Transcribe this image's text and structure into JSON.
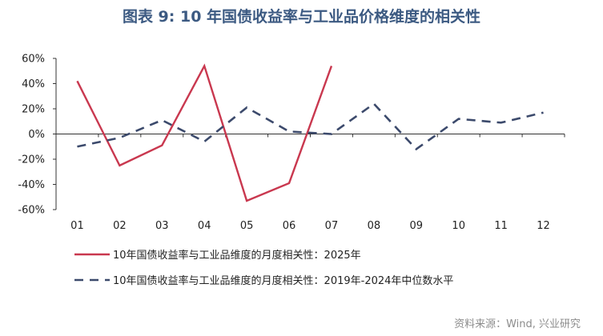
{
  "chart_data": {
    "type": "line",
    "title": "图表 9:  10 年国债收益率与工业品价格维度的相关性",
    "categories": [
      "01",
      "02",
      "03",
      "04",
      "05",
      "06",
      "07",
      "08",
      "09",
      "10",
      "11",
      "12"
    ],
    "ylim": [
      -60,
      60
    ],
    "yticks": [
      -60,
      -40,
      -20,
      0,
      20,
      40,
      60
    ],
    "y_unit": "%",
    "grid": false,
    "legend_position": "bottom",
    "series": [
      {
        "name": "10年国债收益率与工业品维度的月度相关性：2025年",
        "color": "#c9384f",
        "dash": "solid",
        "values": [
          42,
          -25,
          -9,
          54,
          -53,
          -39,
          54,
          null,
          null,
          null,
          null,
          null
        ]
      },
      {
        "name": "10年国债收益率与工业品维度的月度相关性：2019年-2024年中位数水平",
        "color": "#3c4a6c",
        "dash": "dashed",
        "values": [
          -10,
          -3,
          11,
          -6,
          21,
          2,
          0,
          24,
          -12,
          12,
          9,
          17
        ]
      }
    ],
    "source": "资料来源：Wind, 兴业研究"
  }
}
